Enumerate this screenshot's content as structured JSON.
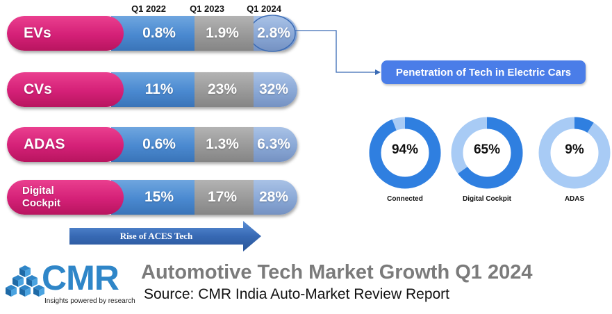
{
  "chart_data": {
    "type": "table",
    "title": "Automotive Tech Market Growth Q1 2024",
    "columns": [
      "Q1 2022",
      "Q1 2023",
      "Q1 2024"
    ],
    "rows": [
      {
        "label": "EVs",
        "values": [
          "0.8%",
          "1.9%",
          "2.8%"
        ]
      },
      {
        "label": "CVs",
        "values": [
          "11%",
          "23%",
          "32%"
        ]
      },
      {
        "label": "ADAS",
        "values": [
          "0.6%",
          "1.3%",
          "6.3%"
        ]
      },
      {
        "label": "Digital\nCockpit",
        "values": [
          "15%",
          "17%",
          "28%"
        ]
      }
    ],
    "arrow_label": "Rise of ACES Tech",
    "penetration": {
      "title": "Penetration of Tech in Electric Cars",
      "type": "pie",
      "items": [
        {
          "label": "Connected",
          "value": 94,
          "text": "94%"
        },
        {
          "label": "Digital Cockpit",
          "value": 65,
          "text": "65%"
        },
        {
          "label": "ADAS",
          "value": 9,
          "text": "9%"
        }
      ]
    }
  },
  "branding": {
    "logo": "CMR",
    "tagline": "Insights powered by research",
    "headline": "Automotive Tech Market Growth Q1 2024",
    "source": "Source: CMR India Auto-Market Review Report"
  },
  "colors": {
    "pink": "#d42077",
    "blue": "#4a89d0",
    "grey": "#999999",
    "light_blue": "#8aa8d6",
    "donut_dark": "#2f7fe0",
    "donut_light": "#a8cbf5",
    "logo": "#2f86c8"
  },
  "icons": {
    "logo_mark": "cube-cluster-icon",
    "arrow": "right-arrow-icon"
  }
}
